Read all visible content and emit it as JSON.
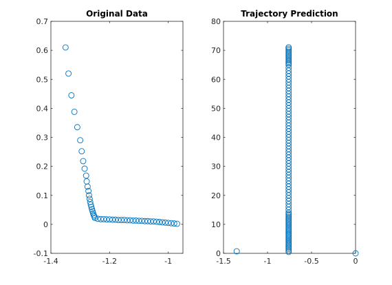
{
  "figure": {
    "background": "#ffffff",
    "marker_color": "#0072BD",
    "axis_color": "#262626"
  },
  "chart_data": [
    {
      "type": "scatter",
      "title": "Original Data",
      "xlim": [
        -1.4,
        -0.95
      ],
      "ylim": [
        -0.1,
        0.7
      ],
      "xticks": [
        -1.4,
        -1.2,
        -1
      ],
      "xtick_labels": [
        "-1.4",
        "-1.2",
        "-1"
      ],
      "yticks": [
        -0.1,
        0,
        0.1,
        0.2,
        0.3,
        0.4,
        0.5,
        0.6,
        0.7
      ],
      "ytick_labels": [
        "-0.1",
        "0",
        "0.1",
        "0.2",
        "0.3",
        "0.4",
        "0.5",
        "0.6",
        "0.7"
      ],
      "marker": "open-circle",
      "grid": false,
      "x": [
        -1.35,
        -1.34,
        -1.33,
        -1.32,
        -1.31,
        -1.3,
        -1.295,
        -1.29,
        -1.285,
        -1.28,
        -1.278,
        -1.275,
        -1.272,
        -1.27,
        -1.268,
        -1.266,
        -1.264,
        -1.262,
        -1.26,
        -1.258,
        -1.256,
        -1.254,
        -1.252,
        -1.25,
        -1.24,
        -1.23,
        -1.22,
        -1.21,
        -1.2,
        -1.19,
        -1.18,
        -1.17,
        -1.16,
        -1.15,
        -1.14,
        -1.13,
        -1.12,
        -1.11,
        -1.1,
        -1.09,
        -1.08,
        -1.07,
        -1.06,
        -1.05,
        -1.04,
        -1.03,
        -1.02,
        -1.01,
        -1,
        -0.99,
        -0.98,
        -0.97
      ],
      "y": [
        0.61,
        0.52,
        0.445,
        0.388,
        0.335,
        0.29,
        0.252,
        0.218,
        0.192,
        0.168,
        0.148,
        0.13,
        0.115,
        0.1,
        0.088,
        0.077,
        0.068,
        0.06,
        0.052,
        0.045,
        0.038,
        0.032,
        0.027,
        0.022,
        0.019,
        0.018,
        0.018,
        0.017,
        0.017,
        0.016,
        0.016,
        0.015,
        0.015,
        0.015,
        0.014,
        0.014,
        0.013,
        0.013,
        0.012,
        0.012,
        0.011,
        0.011,
        0.01,
        0.01,
        0.009,
        0.008,
        0.007,
        0.006,
        0.005,
        0.004,
        0.003,
        0.002
      ]
    },
    {
      "type": "scatter",
      "title": "Trajectory Prediction",
      "xlim": [
        -1.5,
        0
      ],
      "ylim": [
        0,
        80
      ],
      "xticks": [
        -1.5,
        -1,
        -0.5,
        0
      ],
      "xtick_labels": [
        "-1.5",
        "-1",
        "-0.5",
        "0"
      ],
      "yticks": [
        0,
        10,
        20,
        30,
        40,
        50,
        60,
        70,
        80
      ],
      "ytick_labels": [
        "0",
        "10",
        "20",
        "30",
        "40",
        "50",
        "60",
        "70",
        "80"
      ],
      "marker": "open-circle",
      "grid": false,
      "x": [
        -1.35,
        0,
        -0.76,
        -0.76,
        -0.76,
        -0.76,
        -0.76,
        -0.76,
        -0.76,
        -0.76,
        -0.76,
        -0.76,
        -0.76,
        -0.76,
        -0.76,
        -0.76,
        -0.76,
        -0.76,
        -0.76,
        -0.76,
        -0.76,
        -0.76,
        -0.76,
        -0.76,
        -0.76,
        -0.76,
        -0.76,
        -0.76,
        -0.76,
        -0.76,
        -0.76,
        -0.76,
        -0.76,
        -0.76,
        -0.76,
        -0.76,
        -0.76,
        -0.76,
        -0.76,
        -0.76,
        -0.76,
        -0.76,
        -0.76,
        -0.76,
        -0.76,
        -0.76,
        -0.76,
        -0.76,
        -0.76,
        -0.76,
        -0.76,
        -0.76,
        -0.76,
        -0.76,
        -0.76,
        -0.76,
        -0.76,
        -0.76,
        -0.76,
        -0.76,
        -0.76,
        -0.76,
        -0.76,
        -0.76,
        -0.76,
        -0.76,
        -0.76,
        -0.76,
        -0.76,
        -0.76,
        -0.76,
        -0.76,
        -0.76,
        -0.76,
        -0.76,
        -0.76,
        -0.76,
        -0.76,
        -0.76,
        -0.76,
        -0.76,
        -0.76,
        -0.76,
        -0.76,
        -0.76,
        -0.76,
        -0.76,
        -0.76,
        -0.76,
        -0.76,
        -0.76,
        -0.76,
        -0.76,
        -0.76
      ],
      "y": [
        0.7,
        0,
        0.5,
        1,
        1.5,
        2,
        2.5,
        3,
        3.5,
        4,
        4.5,
        5,
        5.5,
        6,
        6.5,
        7,
        7.5,
        8,
        8.5,
        9,
        9.5,
        10,
        10.5,
        11,
        11.5,
        12,
        12.5,
        13,
        13.5,
        14,
        15,
        16,
        17,
        18,
        19,
        20,
        21,
        22,
        23,
        24,
        25,
        26,
        27,
        28,
        29,
        30,
        31,
        32,
        33,
        34,
        35,
        36,
        37,
        38,
        39,
        40,
        41,
        42,
        43,
        44,
        45,
        46,
        47,
        48,
        49,
        50,
        51,
        52,
        53,
        54,
        55,
        56,
        57,
        58,
        59,
        60,
        61,
        62,
        63,
        64,
        65,
        66,
        67,
        68,
        69,
        70,
        71,
        71,
        70.5,
        69.5,
        68.5,
        67.5,
        66.5,
        65.5
      ]
    }
  ]
}
